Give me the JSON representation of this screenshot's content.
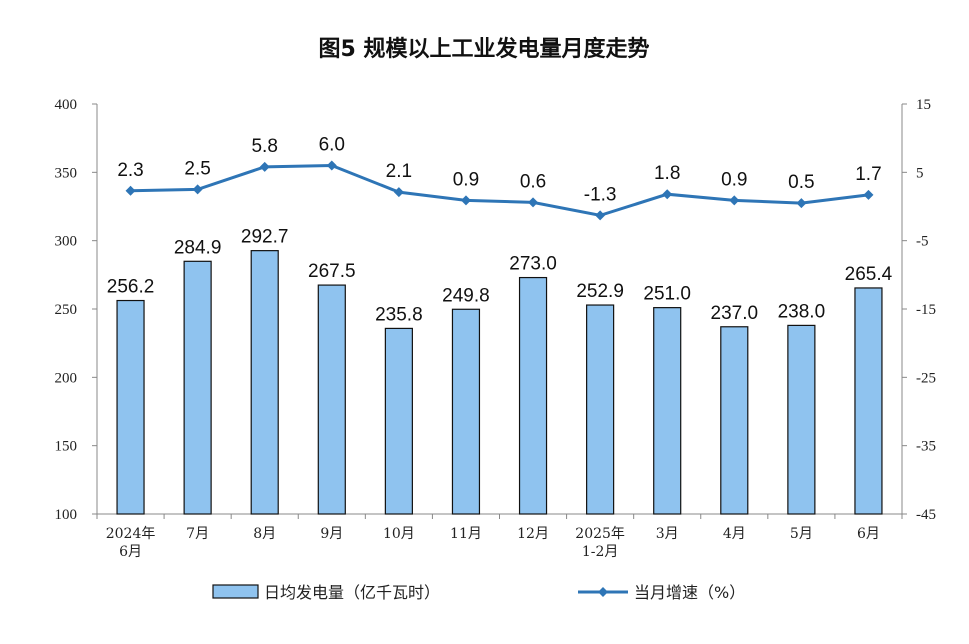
{
  "chart_data": {
    "type": "bar",
    "title": "图5  规模以上工业发电量月度走势",
    "categories": [
      [
        "2024年",
        "6月"
      ],
      [
        "7月"
      ],
      [
        "8月"
      ],
      [
        "9月"
      ],
      [
        "10月"
      ],
      [
        "11月"
      ],
      [
        "12月"
      ],
      [
        "2025年",
        "1-2月"
      ],
      [
        "3月"
      ],
      [
        "4月"
      ],
      [
        "5月"
      ],
      [
        "6月"
      ]
    ],
    "series": [
      {
        "name": "日均发电量（亿千瓦时）",
        "type": "bar",
        "axis": "left",
        "color": "#8fc3ef",
        "values": [
          256.2,
          284.9,
          292.7,
          267.5,
          235.8,
          249.8,
          273.0,
          252.9,
          251.0,
          237.0,
          238.0,
          265.4
        ],
        "labels": [
          "256.2",
          "284.9",
          "292.7",
          "267.5",
          "235.8",
          "249.8",
          "273.0",
          "252.9",
          "251.0",
          "237.0",
          "238.0",
          "265.4"
        ]
      },
      {
        "name": "当月增速（%）",
        "type": "line",
        "axis": "right",
        "color": "#2e75b6",
        "values": [
          2.3,
          2.5,
          5.8,
          6.0,
          2.1,
          0.9,
          0.6,
          -1.3,
          1.8,
          0.9,
          0.5,
          1.7
        ],
        "labels": [
          "2.3",
          "2.5",
          "5.8",
          "6.0",
          "2.1",
          "0.9",
          "0.6",
          "-1.3",
          "1.8",
          "0.9",
          "0.5",
          "1.7"
        ]
      }
    ],
    "y_left": {
      "min": 100,
      "max": 400,
      "ticks": [
        "100",
        "150",
        "200",
        "250",
        "300",
        "350",
        "400"
      ]
    },
    "y_right": {
      "min": -45,
      "max": 15,
      "ticks": [
        "-45",
        "-35",
        "-25",
        "-15",
        "-5",
        "5",
        "15"
      ]
    },
    "grid": false,
    "legend_position": "bottom"
  }
}
